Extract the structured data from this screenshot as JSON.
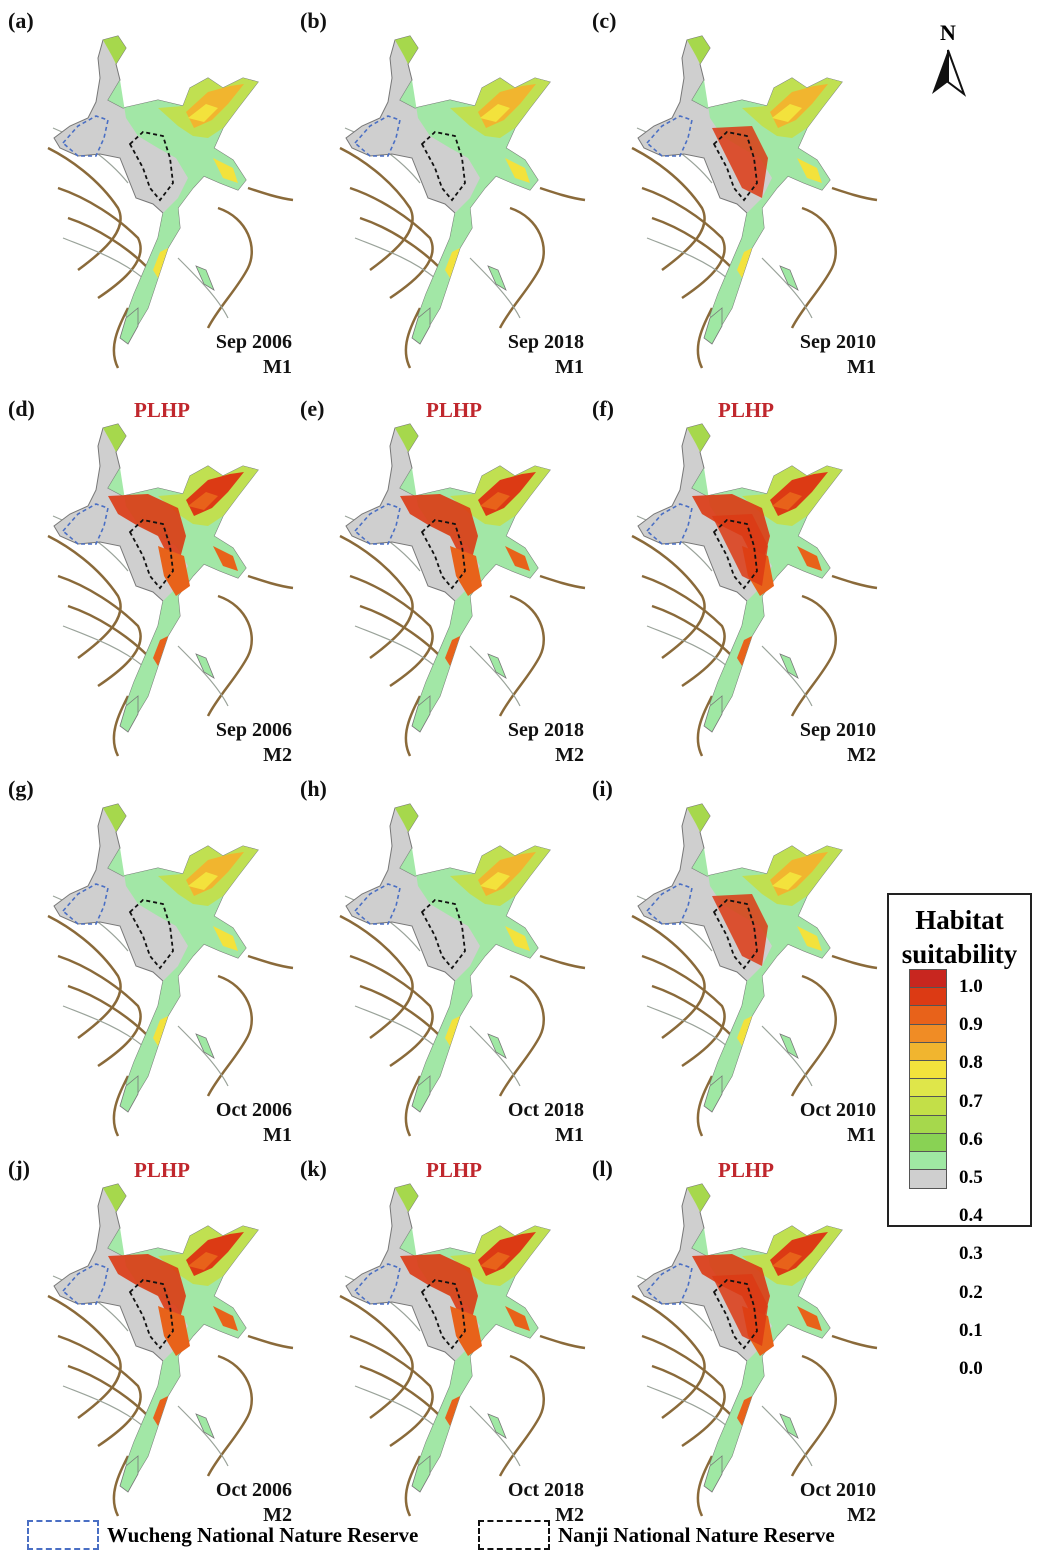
{
  "panels": [
    {
      "label": "(a)",
      "month_year": "Sep 2006",
      "model": "M1",
      "plhp": ""
    },
    {
      "label": "(b)",
      "month_year": "Sep 2018",
      "model": "M1",
      "plhp": ""
    },
    {
      "label": "(c)",
      "month_year": "Sep 2010",
      "model": "M1",
      "plhp": ""
    },
    {
      "label": "(d)",
      "month_year": "Sep 2006",
      "model": "M2",
      "plhp": "PLHP"
    },
    {
      "label": "(e)",
      "month_year": "Sep 2018",
      "model": "M2",
      "plhp": "PLHP"
    },
    {
      "label": "(f)",
      "month_year": "Sep 2010",
      "model": "M2",
      "plhp": "PLHP"
    },
    {
      "label": "(g)",
      "month_year": "Oct 2006",
      "model": "M1",
      "plhp": ""
    },
    {
      "label": "(h)",
      "month_year": "Oct 2018",
      "model": "M1",
      "plhp": ""
    },
    {
      "label": "(i)",
      "month_year": "Oct 2010",
      "model": "M1",
      "plhp": ""
    },
    {
      "label": "(j)",
      "month_year": "Oct 2006",
      "model": "M2",
      "plhp": "PLHP"
    },
    {
      "label": "(k)",
      "month_year": "Oct 2018",
      "model": "M2",
      "plhp": "PLHP"
    },
    {
      "label": "(l)",
      "month_year": "Oct 2010",
      "model": "M2",
      "plhp": "PLHP"
    }
  ],
  "north_arrow": {
    "label": "N"
  },
  "legend": {
    "title_line1": "Habitat",
    "title_line2": "suitability",
    "ticks": [
      "1.0",
      "0.9",
      "0.8",
      "0.7",
      "0.6",
      "0.5",
      "0.4",
      "0.3",
      "0.2",
      "0.1",
      "0.0"
    ],
    "colors": [
      "#c8261f",
      "#dc3a14",
      "#e8621a",
      "#f08c25",
      "#f1b52f",
      "#f3e23c",
      "#dfe64a",
      "#c3df48",
      "#a6d84c",
      "#89d254",
      "#9fe8a3",
      "#cfcfcf"
    ]
  },
  "reserves": {
    "wucheng": "Wucheng National Nature Reserve",
    "nanji": "Nanji National Nature Reserve"
  },
  "colors": {
    "plhp_text": "#c0272d",
    "wucheng_boundary": "#4a6fc4",
    "nanji_boundary": "#111111",
    "no_habitat": "#cfcfcf"
  }
}
